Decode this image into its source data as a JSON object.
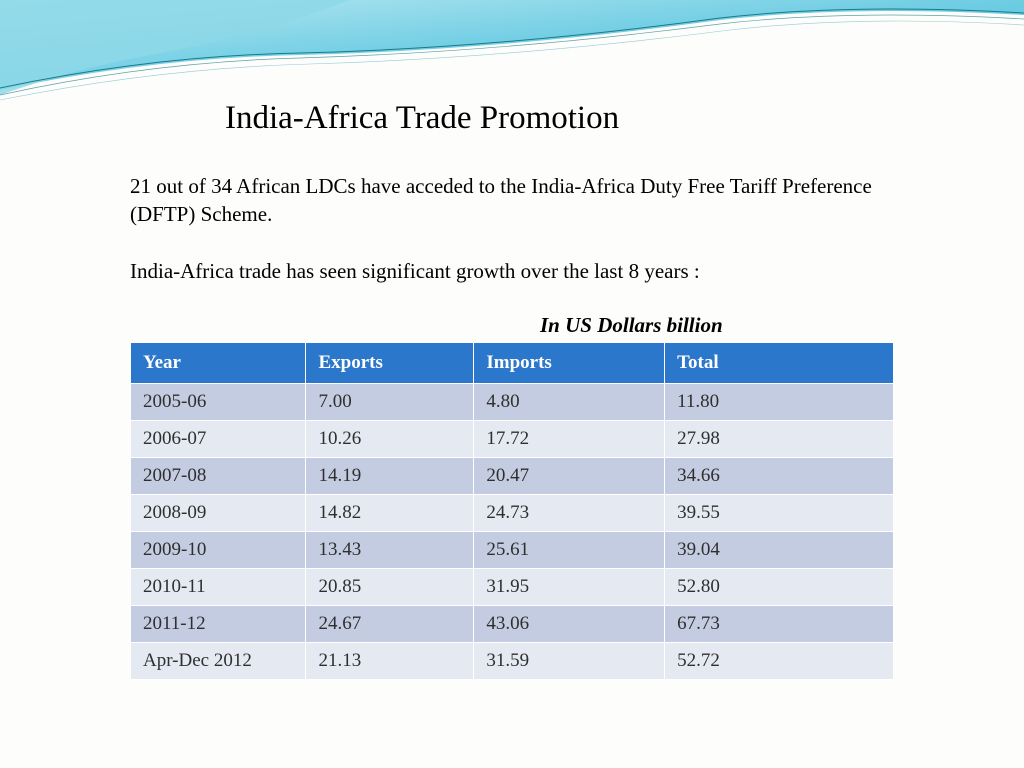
{
  "title": "India-Africa Trade Promotion",
  "paragraph1": "21 out of 34 African LDCs have acceded to the India-Africa Duty Free Tariff Preference (DFTP) Scheme.",
  "paragraph2": "India-Africa trade has seen significant growth over the last 8 years :",
  "units_label": "In US Dollars billion",
  "table": {
    "type": "table",
    "header_bg": "#2a77cc",
    "header_text_color": "#ffffff",
    "row_odd_bg": "#c3cce0",
    "row_even_bg": "#e4e9f2",
    "cell_text_color": "#2f2f2f",
    "border_color": "#ffffff",
    "font_size": 19,
    "columns": [
      "Year",
      "Exports",
      "Imports",
      "Total"
    ],
    "rows": [
      [
        "2005-06",
        "7.00",
        "4.80",
        "11.80"
      ],
      [
        "2006-07",
        "10.26",
        "17.72",
        "27.98"
      ],
      [
        "2007-08",
        "14.19",
        "20.47",
        "34.66"
      ],
      [
        "2008-09",
        "14.82",
        "24.73",
        "39.55"
      ],
      [
        "2009-10",
        "13.43",
        "25.61",
        "39.04"
      ],
      [
        "2010-11",
        "20.85",
        "31.95",
        "52.80"
      ],
      [
        "2011-12",
        "24.67",
        "43.06",
        "67.73"
      ],
      [
        "Apr-Dec 2012",
        "21.13",
        "31.59",
        "52.72"
      ]
    ]
  },
  "wave": {
    "gradient_light": "#b8e8f2",
    "gradient_mid": "#6fcde3",
    "gradient_dark": "#3db5d6",
    "line_color": "#1a7a8a"
  }
}
